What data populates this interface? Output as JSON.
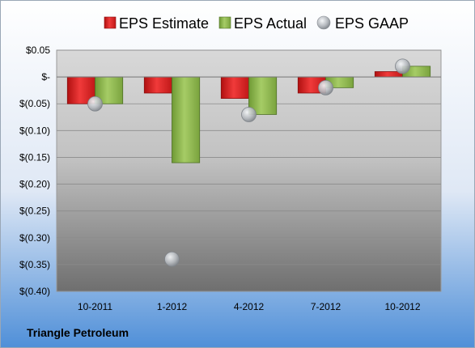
{
  "chart_data": {
    "type": "bar",
    "categories": [
      "10-2011",
      "1-2012",
      "4-2012",
      "7-2012",
      "10-2012"
    ],
    "series": [
      {
        "name": "EPS Estimate",
        "type": "bar",
        "color": "#e02020",
        "values": [
          -0.05,
          -0.03,
          -0.04,
          -0.03,
          0.01
        ]
      },
      {
        "name": "EPS Actual",
        "type": "bar",
        "color": "#8ab34a",
        "values": [
          -0.05,
          -0.16,
          -0.07,
          -0.02,
          0.02
        ]
      },
      {
        "name": "EPS GAAP",
        "type": "scatter",
        "color": "#b8bcc0",
        "values": [
          -0.05,
          -0.34,
          -0.07,
          -0.02,
          0.02
        ]
      }
    ],
    "ylim": [
      -0.4,
      0.05
    ],
    "yticks": [
      0.05,
      0,
      -0.05,
      -0.1,
      -0.15,
      -0.2,
      -0.25,
      -0.3,
      -0.35,
      -0.4
    ],
    "ytick_labels": [
      "$0.05",
      "$-",
      "$(0.05)",
      "$(0.10)",
      "$(0.15)",
      "$(0.20)",
      "$(0.25)",
      "$(0.30)",
      "$(0.35)",
      "$(0.40)"
    ],
    "grid": true,
    "legend_position": "top"
  },
  "company": "Triangle Petroleum"
}
